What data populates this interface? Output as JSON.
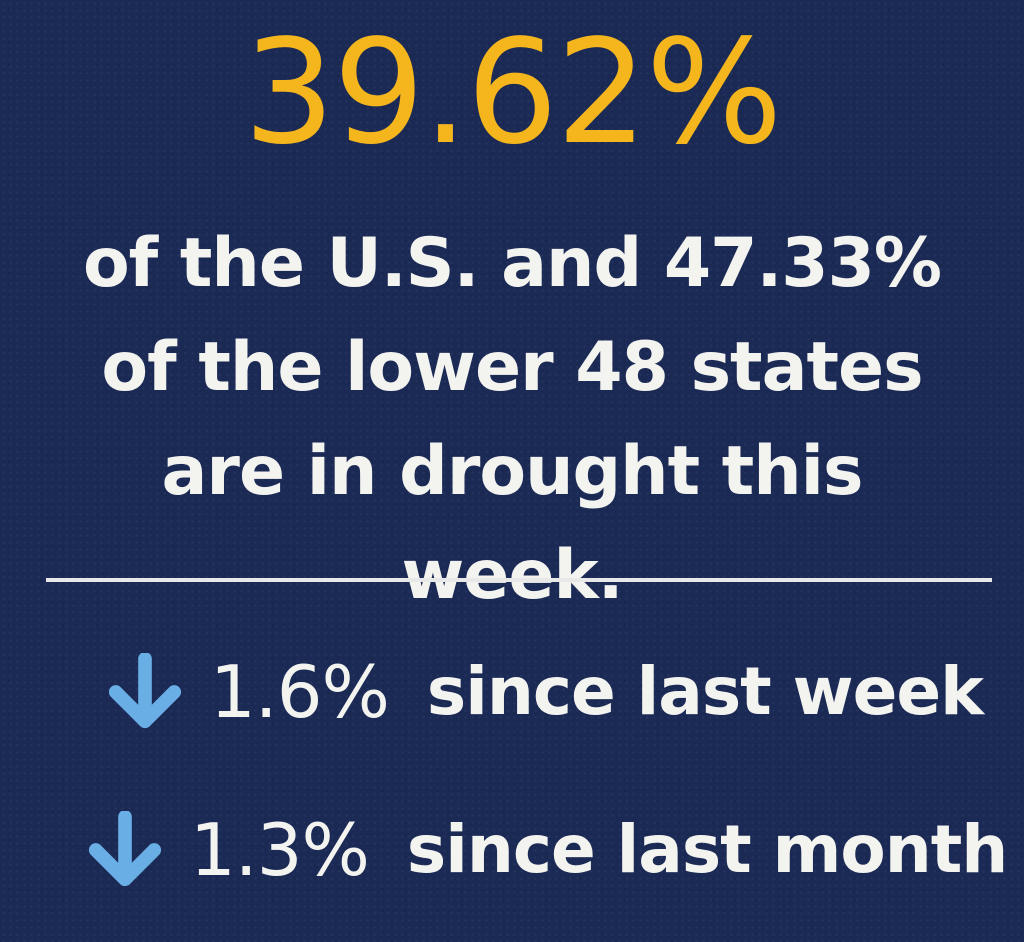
{
  "headline": {
    "value": "39.62%"
  },
  "description": {
    "text": "of the U.S. and 47.33% of the lower 48 states are in drought this week."
  },
  "changes": [
    {
      "icon": "down-arrow-icon",
      "direction": "down",
      "value": "1.6%",
      "period": "since last week"
    },
    {
      "icon": "down-arrow-icon",
      "direction": "down",
      "value": "1.3%",
      "period": "since last month"
    }
  ],
  "colors": {
    "background": "#1b2a55",
    "headline": "#f4b51d",
    "text": "#f3f3f0",
    "arrow": "#6aaee6",
    "divider": "#e8e8e8"
  }
}
